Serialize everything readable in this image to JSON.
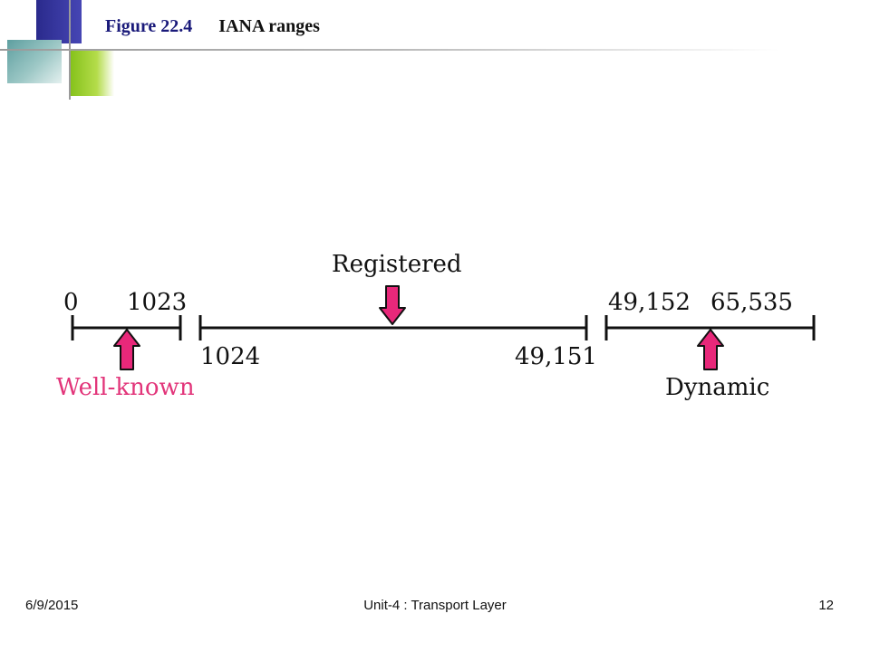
{
  "slide": {
    "figure_number": "Figure 22.4",
    "figure_title": "IANA ranges"
  },
  "diagram": {
    "ranges": [
      {
        "name": "Well-known",
        "start_label": "0",
        "end_label": "1023",
        "color": "#e2357a"
      },
      {
        "name": "Registered",
        "start_label": "1024",
        "end_label": "49,151",
        "color": "#111111"
      },
      {
        "name": "Dynamic",
        "start_label": "49,152",
        "end_label": "65,535",
        "color": "#111111"
      }
    ],
    "arrow_color": "#e8287a"
  },
  "footer": {
    "date": "6/9/2015",
    "center": "Unit-4 : Transport Layer",
    "page": "12"
  }
}
